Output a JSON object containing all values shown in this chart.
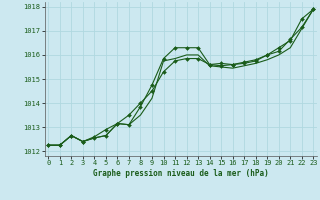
{
  "title": "Graphe pression niveau de la mer (hPa)",
  "bg_color": "#cce8f0",
  "grid_color": "#b0d8e0",
  "line_color": "#1a5c1a",
  "xlim": [
    -0.3,
    23.3
  ],
  "ylim": [
    1011.8,
    1018.2
  ],
  "xticks": [
    0,
    1,
    2,
    3,
    4,
    5,
    6,
    7,
    8,
    9,
    10,
    11,
    12,
    13,
    14,
    15,
    16,
    17,
    18,
    19,
    20,
    21,
    22,
    23
  ],
  "yticks": [
    1012,
    1013,
    1014,
    1015,
    1016,
    1017,
    1018
  ],
  "series1_x": [
    0,
    1,
    2,
    3,
    4,
    5,
    6,
    7,
    8,
    9,
    10,
    11,
    12,
    13,
    14,
    15,
    16,
    17,
    18,
    19,
    20,
    21,
    22,
    23
  ],
  "series1_y": [
    1012.25,
    1012.25,
    1012.65,
    1012.4,
    1012.55,
    1012.65,
    1013.15,
    1013.1,
    1013.85,
    1014.75,
    1015.85,
    1016.3,
    1016.3,
    1016.3,
    1015.6,
    1015.65,
    1015.6,
    1015.65,
    1015.75,
    1016.0,
    1016.3,
    1016.6,
    1017.5,
    1017.9
  ],
  "series2_x": [
    0,
    1,
    2,
    3,
    4,
    5,
    6,
    7,
    8,
    9,
    10,
    11,
    12,
    13,
    14,
    15,
    16,
    17,
    18,
    19,
    20,
    21,
    22,
    23
  ],
  "series2_y": [
    1012.25,
    1012.25,
    1012.65,
    1012.4,
    1012.55,
    1012.65,
    1013.15,
    1013.1,
    1013.5,
    1014.2,
    1015.75,
    1015.85,
    1016.0,
    1016.0,
    1015.55,
    1015.5,
    1015.45,
    1015.55,
    1015.65,
    1015.8,
    1016.0,
    1016.3,
    1017.1,
    1017.9
  ],
  "series3_x": [
    0,
    1,
    2,
    3,
    4,
    5,
    6,
    7,
    8,
    9,
    10,
    11,
    12,
    13,
    14,
    15,
    16,
    17,
    18,
    19,
    20,
    21,
    22,
    23
  ],
  "series3_y": [
    1012.25,
    1012.25,
    1012.65,
    1012.4,
    1012.6,
    1012.9,
    1013.15,
    1013.5,
    1014.0,
    1014.5,
    1015.3,
    1015.75,
    1015.85,
    1015.85,
    1015.6,
    1015.55,
    1015.6,
    1015.7,
    1015.8,
    1016.0,
    1016.15,
    1016.65,
    1017.15,
    1017.9
  ]
}
